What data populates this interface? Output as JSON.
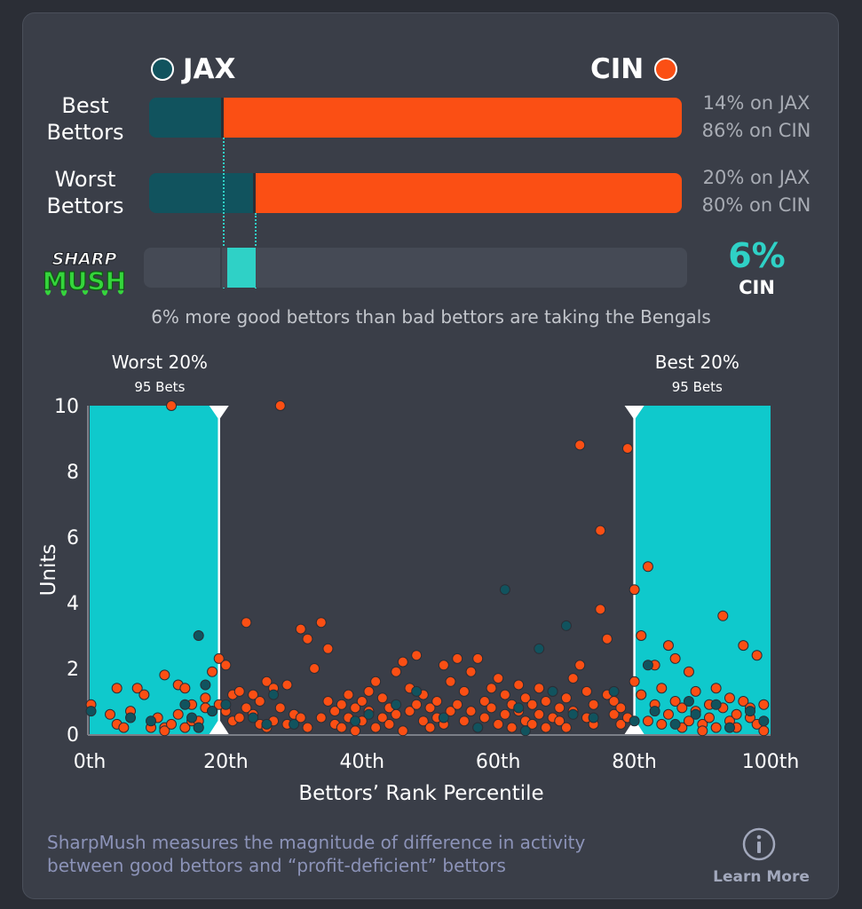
{
  "teams": {
    "away": {
      "abbr": "JAX",
      "color": "#11535e"
    },
    "home": {
      "abbr": "CIN",
      "color": "#fb4f14"
    }
  },
  "best": {
    "label_line1": "Best",
    "label_line2": "Bettors",
    "away_pct": 14,
    "home_pct": 86,
    "away_text": "14% on JAX",
    "home_text": "86% on CIN"
  },
  "worst": {
    "label_line1": "Worst",
    "label_line2": "Bettors",
    "away_pct": 20,
    "home_pct": 80,
    "away_text": "20% on JAX",
    "home_text": "80% on CIN"
  },
  "sharpmush": {
    "logo_line1": "SHARP",
    "logo_line2": "MUSH",
    "diff_value": "6%",
    "diff_team": "CIN",
    "diff_from_pct": 14,
    "diff_to_pct": 20,
    "accent": "#2fd1c6",
    "summary": "6% more good bettors than bad bettors are taking the Bengals"
  },
  "chart_data": {
    "type": "scatter",
    "xlabel": "Bettors’ Rank Percentile",
    "ylabel": "Units",
    "xlim": [
      0,
      100
    ],
    "ylim": [
      0,
      10
    ],
    "x_ticks": [
      0,
      20,
      40,
      60,
      80,
      100
    ],
    "x_tick_labels": [
      "0th",
      "20th",
      "40th",
      "60th",
      "80th",
      "100th"
    ],
    "y_ticks": [
      0,
      2,
      4,
      6,
      8,
      10
    ],
    "y_tick_labels": [
      "0",
      "2",
      "4",
      "6",
      "8",
      "10"
    ],
    "regions": [
      {
        "title": "Worst 20%",
        "subtitle": "95 Bets",
        "x_from": 0,
        "x_to": 19,
        "color": "#0fc9cc"
      },
      {
        "title": "Best 20%",
        "subtitle": "95 Bets",
        "x_from": 80,
        "x_to": 100,
        "color": "#0fc9cc"
      }
    ],
    "series": [
      {
        "name": "CIN",
        "color": "#fb4f14",
        "points": [
          [
            0.2,
            0.9
          ],
          [
            3,
            0.6
          ],
          [
            4,
            0.3
          ],
          [
            4,
            1.4
          ],
          [
            5,
            0.2
          ],
          [
            6,
            0.7
          ],
          [
            7,
            1.4
          ],
          [
            8,
            1.2
          ],
          [
            9,
            0.2
          ],
          [
            10,
            0.5
          ],
          [
            11,
            0.2
          ],
          [
            11,
            0.1
          ],
          [
            11,
            1.8
          ],
          [
            12,
            10
          ],
          [
            12,
            0.3
          ],
          [
            13,
            1.5
          ],
          [
            13,
            0.6
          ],
          [
            14,
            0.2
          ],
          [
            14,
            1.4
          ],
          [
            15,
            0.4
          ],
          [
            15,
            0.9
          ],
          [
            16,
            0.2
          ],
          [
            16,
            0.4
          ],
          [
            17,
            0.8
          ],
          [
            17,
            1.1
          ],
          [
            18,
            0.7
          ],
          [
            18,
            1.9
          ],
          [
            19,
            2.3
          ],
          [
            19,
            0.9
          ],
          [
            20,
            2.1
          ],
          [
            20,
            0.7
          ],
          [
            21,
            1.2
          ],
          [
            21,
            0.4
          ],
          [
            22,
            1.3
          ],
          [
            22,
            0.5
          ],
          [
            23,
            0.8
          ],
          [
            23,
            3.4
          ],
          [
            24,
            0.6
          ],
          [
            24,
            1.2
          ],
          [
            25,
            0.3
          ],
          [
            25,
            1.0
          ],
          [
            26,
            1.6
          ],
          [
            26,
            0.2
          ],
          [
            27,
            1.4
          ],
          [
            27,
            0.4
          ],
          [
            28,
            10
          ],
          [
            28,
            0.8
          ],
          [
            29,
            1.5
          ],
          [
            29,
            0.3
          ],
          [
            30,
            0.6
          ],
          [
            31,
            3.2
          ],
          [
            31,
            0.5
          ],
          [
            32,
            2.9
          ],
          [
            32,
            0.2
          ],
          [
            33,
            2.0
          ],
          [
            34,
            3.4
          ],
          [
            34,
            0.5
          ],
          [
            35,
            2.6
          ],
          [
            35,
            1.0
          ],
          [
            36,
            0.3
          ],
          [
            36,
            0.7
          ],
          [
            37,
            0.9
          ],
          [
            37,
            0.2
          ],
          [
            38,
            1.2
          ],
          [
            38,
            0.5
          ],
          [
            39,
            0.8
          ],
          [
            39,
            0.1
          ],
          [
            40,
            1.0
          ],
          [
            40,
            0.4
          ],
          [
            41,
            1.3
          ],
          [
            41,
            0.7
          ],
          [
            42,
            1.6
          ],
          [
            42,
            0.2
          ],
          [
            43,
            1.1
          ],
          [
            43,
            0.5
          ],
          [
            44,
            0.8
          ],
          [
            44,
            0.3
          ],
          [
            45,
            1.9
          ],
          [
            45,
            0.6
          ],
          [
            46,
            2.2
          ],
          [
            46,
            0.1
          ],
          [
            47,
            1.4
          ],
          [
            47,
            0.7
          ],
          [
            48,
            2.4
          ],
          [
            48,
            0.9
          ],
          [
            49,
            0.4
          ],
          [
            49,
            1.2
          ],
          [
            50,
            0.8
          ],
          [
            50,
            0.2
          ],
          [
            51,
            1.0
          ],
          [
            51,
            0.5
          ],
          [
            52,
            2.1
          ],
          [
            52,
            0.3
          ],
          [
            53,
            1.6
          ],
          [
            53,
            0.7
          ],
          [
            54,
            2.3
          ],
          [
            54,
            0.9
          ],
          [
            55,
            1.3
          ],
          [
            55,
            0.4
          ],
          [
            56,
            0.7
          ],
          [
            56,
            1.9
          ],
          [
            57,
            0.2
          ],
          [
            57,
            2.3
          ],
          [
            58,
            1.0
          ],
          [
            58,
            0.5
          ],
          [
            59,
            0.8
          ],
          [
            59,
            1.4
          ],
          [
            60,
            0.3
          ],
          [
            60,
            1.7
          ],
          [
            61,
            1.2
          ],
          [
            61,
            0.6
          ],
          [
            62,
            0.9
          ],
          [
            62,
            0.2
          ],
          [
            63,
            1.5
          ],
          [
            63,
            0.7
          ],
          [
            64,
            0.4
          ],
          [
            64,
            1.1
          ],
          [
            65,
            0.9
          ],
          [
            65,
            0.3
          ],
          [
            66,
            1.4
          ],
          [
            66,
            0.6
          ],
          [
            67,
            0.2
          ],
          [
            67,
            1.0
          ],
          [
            68,
            0.5
          ],
          [
            68,
            1.3
          ],
          [
            69,
            0.8
          ],
          [
            69,
            0.4
          ],
          [
            70,
            1.1
          ],
          [
            70,
            0.2
          ],
          [
            71,
            1.7
          ],
          [
            71,
            0.7
          ],
          [
            72,
            2.1
          ],
          [
            72,
            8.8
          ],
          [
            73,
            0.5
          ],
          [
            73,
            1.3
          ],
          [
            74,
            0.9
          ],
          [
            74,
            0.3
          ],
          [
            75,
            6.2
          ],
          [
            75,
            3.8
          ],
          [
            76,
            2.9
          ],
          [
            76,
            1.2
          ],
          [
            77,
            0.6
          ],
          [
            77,
            1.0
          ],
          [
            78,
            0.3
          ],
          [
            78,
            0.8
          ],
          [
            79,
            8.7
          ],
          [
            79,
            0.5
          ],
          [
            80,
            4.4
          ],
          [
            80,
            1.6
          ],
          [
            81,
            3.0
          ],
          [
            81,
            1.2
          ],
          [
            82,
            5.1
          ],
          [
            82,
            0.4
          ],
          [
            83,
            2.1
          ],
          [
            83,
            0.9
          ],
          [
            84,
            0.3
          ],
          [
            84,
            1.4
          ],
          [
            85,
            2.7
          ],
          [
            85,
            0.6
          ],
          [
            86,
            2.3
          ],
          [
            86,
            1.0
          ],
          [
            87,
            0.2
          ],
          [
            87,
            0.8
          ],
          [
            88,
            1.9
          ],
          [
            88,
            0.4
          ],
          [
            89,
            1.3
          ],
          [
            89,
            0.7
          ],
          [
            90,
            0.3
          ],
          [
            90,
            0.1
          ],
          [
            91,
            0.9
          ],
          [
            91,
            0.5
          ],
          [
            92,
            1.4
          ],
          [
            92,
            0.2
          ],
          [
            93,
            3.6
          ],
          [
            93,
            0.8
          ],
          [
            94,
            1.1
          ],
          [
            94,
            0.4
          ],
          [
            95,
            0.6
          ],
          [
            95,
            0.2
          ],
          [
            96,
            2.7
          ],
          [
            96,
            1.0
          ],
          [
            97,
            0.5
          ],
          [
            97,
            0.8
          ],
          [
            98,
            2.4
          ],
          [
            98,
            0.3
          ],
          [
            99,
            0.1
          ],
          [
            99,
            0.9
          ]
        ]
      },
      {
        "name": "JAX",
        "color": "#11535e",
        "points": [
          [
            0.2,
            0.7
          ],
          [
            6,
            0.5
          ],
          [
            9,
            0.4
          ],
          [
            14,
            0.9
          ],
          [
            15,
            0.5
          ],
          [
            16,
            3.0
          ],
          [
            16,
            0.2
          ],
          [
            17,
            1.5
          ],
          [
            18,
            0.7
          ],
          [
            20,
            0.9
          ],
          [
            24,
            0.5
          ],
          [
            26,
            0.3
          ],
          [
            27,
            1.2
          ],
          [
            30,
            0.3
          ],
          [
            39,
            0.4
          ],
          [
            41,
            0.6
          ],
          [
            45,
            0.9
          ],
          [
            48,
            1.3
          ],
          [
            52,
            0.5
          ],
          [
            57,
            0.2
          ],
          [
            61,
            4.4
          ],
          [
            63,
            0.8
          ],
          [
            64,
            0.1
          ],
          [
            66,
            2.6
          ],
          [
            68,
            1.3
          ],
          [
            70,
            3.3
          ],
          [
            71,
            0.6
          ],
          [
            74,
            0.5
          ],
          [
            77,
            1.3
          ],
          [
            80,
            0.4
          ],
          [
            82,
            2.1
          ],
          [
            83,
            0.7
          ],
          [
            86,
            0.3
          ],
          [
            88,
            1.0
          ],
          [
            89,
            0.6
          ],
          [
            92,
            0.9
          ],
          [
            94,
            0.2
          ],
          [
            97,
            0.7
          ],
          [
            99,
            0.4
          ]
        ]
      }
    ]
  },
  "footer": {
    "note_line1": "SharpMush measures the magnitude of difference in activity",
    "note_line2": "between good bettors and “profit-deficient” bettors",
    "info_icon": "info-icon",
    "learn_more": "Learn More"
  }
}
